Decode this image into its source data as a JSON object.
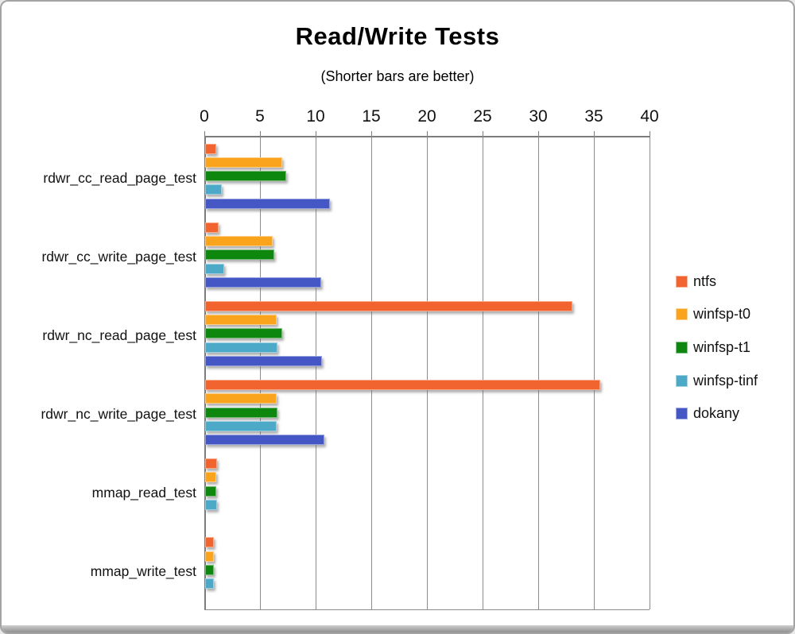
{
  "title": "Read/Write Tests",
  "subtitle": "(Shorter bars are better)",
  "chart_data": {
    "type": "bar",
    "orientation": "horizontal",
    "title": "Read/Write Tests",
    "subtitle": "(Shorter bars are better)",
    "xlabel": "",
    "ylabel": "",
    "xlim": [
      0,
      40
    ],
    "xticks": [
      0,
      5,
      10,
      15,
      20,
      25,
      30,
      35,
      40
    ],
    "grid": true,
    "legend_position": "right",
    "categories": [
      "rdwr_cc_read_page_test",
      "rdwr_cc_write_page_test",
      "rdwr_nc_read_page_test",
      "rdwr_nc_write_page_test",
      "mmap_read_test",
      "mmap_write_test"
    ],
    "series": [
      {
        "name": "ntfs",
        "color": "#F2642F",
        "values": [
          1.0,
          1.2,
          33.0,
          35.5,
          1.1,
          0.8
        ]
      },
      {
        "name": "winfsp-t0",
        "color": "#FAA41E",
        "values": [
          6.9,
          6.1,
          6.4,
          6.4,
          1.0,
          0.8
        ]
      },
      {
        "name": "winfsp-t1",
        "color": "#0E870E",
        "values": [
          7.3,
          6.2,
          6.9,
          6.5,
          1.0,
          0.8
        ]
      },
      {
        "name": "winfsp-tinf",
        "color": "#4CA9C7",
        "values": [
          1.5,
          1.7,
          6.5,
          6.4,
          1.1,
          0.8
        ]
      },
      {
        "name": "dokany",
        "color": "#4457C5",
        "values": [
          11.2,
          10.4,
          10.5,
          10.7,
          0,
          0
        ]
      }
    ]
  }
}
